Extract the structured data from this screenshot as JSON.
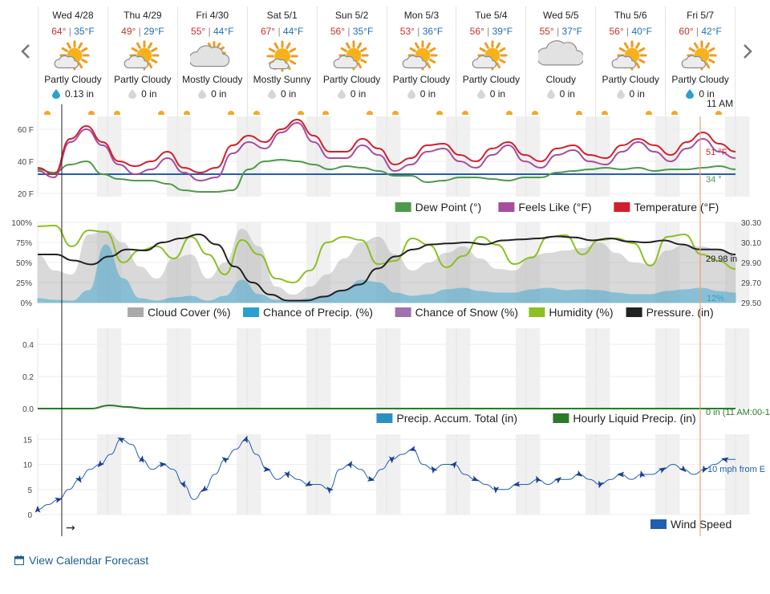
{
  "nav": {
    "prev_icon": "chevron-left-icon",
    "next_icon": "chevron-right-icon"
  },
  "days": [
    {
      "name": "Wed 4/28",
      "hi": "64°",
      "lo": "35°F",
      "cond": "Partly Cloudy",
      "icon": "partly-cloudy-icon",
      "precip": "0.13 in",
      "precip_icon": "rain-drop-icon"
    },
    {
      "name": "Thu 4/29",
      "hi": "49°",
      "lo": "29°F",
      "cond": "Partly Cloudy",
      "icon": "partly-cloudy-icon",
      "precip": "0 in",
      "precip_icon": "no-precip-icon"
    },
    {
      "name": "Fri 4/30",
      "hi": "55°",
      "lo": "44°F",
      "cond": "Mostly Cloudy",
      "icon": "mostly-cloudy-icon",
      "precip": "0 in",
      "precip_icon": "no-precip-icon"
    },
    {
      "name": "Sat 5/1",
      "hi": "67°",
      "lo": "44°F",
      "cond": "Mostly Sunny",
      "icon": "mostly-sunny-icon",
      "precip": "0 in",
      "precip_icon": "no-precip-icon"
    },
    {
      "name": "Sun 5/2",
      "hi": "56°",
      "lo": "35°F",
      "cond": "Partly Cloudy",
      "icon": "partly-cloudy-icon",
      "precip": "0 in",
      "precip_icon": "no-precip-icon"
    },
    {
      "name": "Mon 5/3",
      "hi": "53°",
      "lo": "36°F",
      "cond": "Partly Cloudy",
      "icon": "partly-cloudy-icon",
      "precip": "0 in",
      "precip_icon": "no-precip-icon"
    },
    {
      "name": "Tue 5/4",
      "hi": "56°",
      "lo": "39°F",
      "cond": "Partly Cloudy",
      "icon": "partly-cloudy-icon",
      "precip": "0 in",
      "precip_icon": "no-precip-icon"
    },
    {
      "name": "Wed 5/5",
      "hi": "55°",
      "lo": "37°F",
      "cond": "Cloudy",
      "icon": "cloudy-icon",
      "precip": "0 in",
      "precip_icon": "no-precip-icon"
    },
    {
      "name": "Thu 5/6",
      "hi": "56°",
      "lo": "40°F",
      "cond": "Partly Cloudy",
      "icon": "partly-cloudy-icon",
      "precip": "0 in",
      "precip_icon": "no-precip-icon"
    },
    {
      "name": "Fri 5/7",
      "hi": "60°",
      "lo": "42°F",
      "cond": "Partly Cloudy",
      "icon": "partly-cloudy-icon",
      "precip": "0 in",
      "precip_icon": "rain-drop-icon"
    }
  ],
  "current_time_label": "11 AM",
  "colors": {
    "temperature": "#d0202e",
    "feels_like": "#a64d9e",
    "dew_point": "#4e9a4a",
    "freezing": "#1f5fb0",
    "cloud_cover": "#aaaaaa",
    "precip_chance": "#2aa0d0",
    "snow_chance": "#a070b0",
    "humidity": "#8cc020",
    "pressure": "#222222",
    "precip_total": "#2a90c0",
    "liquid_precip": "#2a7a2a",
    "wind": "#1f5fb0",
    "now_line": "#f0a070",
    "night_band": "#eeeeee"
  },
  "chart_data": [
    {
      "type": "line",
      "title": "",
      "ylim": [
        20,
        65
      ],
      "y_ticks": [
        "60 F",
        "40 F",
        "20 F"
      ],
      "series": [
        {
          "name": "Dew Point (°)",
          "values": [
            35,
            33,
            38,
            40,
            32,
            29,
            28,
            28,
            26,
            22,
            21,
            21,
            22,
            35,
            40,
            41,
            40,
            38,
            35,
            37,
            36,
            34,
            31,
            31,
            27,
            28,
            30,
            30,
            29,
            28,
            30,
            30,
            33,
            34,
            35,
            36,
            35,
            36,
            34,
            35,
            35,
            36,
            37,
            35
          ]
        },
        {
          "name": "Feels Like (°F)",
          "values": [
            34,
            30,
            52,
            60,
            50,
            38,
            32,
            35,
            42,
            33,
            28,
            30,
            45,
            52,
            48,
            58,
            64,
            52,
            42,
            42,
            50,
            44,
            34,
            38,
            46,
            48,
            40,
            36,
            44,
            50,
            40,
            36,
            44,
            47,
            40,
            38,
            46,
            52,
            46,
            40,
            48,
            54,
            46,
            42
          ]
        },
        {
          "name": "Temperature (°F)",
          "values": [
            36,
            32,
            54,
            62,
            52,
            40,
            37,
            40,
            46,
            36,
            33,
            36,
            50,
            56,
            52,
            60,
            66,
            56,
            46,
            46,
            54,
            48,
            38,
            42,
            50,
            51,
            44,
            40,
            48,
            52,
            44,
            40,
            48,
            50,
            44,
            42,
            50,
            54,
            50,
            44,
            52,
            58,
            51,
            46
          ]
        }
      ],
      "annotations": [
        "51 °F",
        "34 °"
      ],
      "freezing_line": 32,
      "legend": [
        "Dew Point (°)",
        "Feels Like (°F)",
        "Temperature (°F)"
      ]
    },
    {
      "type": "area",
      "ylim": [
        0,
        100
      ],
      "y_ticks_left": [
        "100%",
        "75%",
        "50%",
        "25%",
        "0%"
      ],
      "y_ticks_right": [
        "30.30",
        "30.10",
        "29.90",
        "29.70",
        "29.50"
      ],
      "series": [
        {
          "name": "Cloud Cover (%)",
          "values": [
            60,
            40,
            35,
            85,
            90,
            75,
            45,
            30,
            55,
            60,
            30,
            50,
            92,
            70,
            20,
            10,
            20,
            35,
            55,
            75,
            82,
            60,
            40,
            50,
            62,
            70,
            55,
            42,
            40,
            58,
            62,
            65,
            68,
            75,
            62,
            50,
            48,
            65,
            72,
            70,
            65,
            60
          ]
        },
        {
          "name": "Chance of Precip. (%)",
          "values": [
            5,
            3,
            2,
            15,
            72,
            30,
            5,
            2,
            6,
            8,
            2,
            8,
            28,
            10,
            3,
            2,
            5,
            8,
            15,
            28,
            25,
            12,
            8,
            10,
            16,
            18,
            14,
            12,
            12,
            16,
            18,
            15,
            16,
            15,
            12,
            10,
            10,
            14,
            16,
            18,
            14,
            12
          ]
        },
        {
          "name": "Chance of Snow (%)",
          "values": []
        },
        {
          "name": "Humidity (%)",
          "values": [
            95,
            96,
            70,
            90,
            88,
            50,
            65,
            70,
            55,
            82,
            60,
            35,
            78,
            60,
            30,
            25,
            40,
            75,
            82,
            78,
            48,
            52,
            80,
            72,
            44,
            58,
            82,
            72,
            48,
            56,
            82,
            84,
            60,
            78,
            80,
            74,
            46,
            82,
            85,
            60,
            52,
            42
          ]
        },
        {
          "name": "Pressure. (in)",
          "values": [
            29.98,
            29.98,
            29.92,
            29.88,
            29.96,
            30.03,
            30.02,
            30.1,
            30.14,
            30.18,
            30.08,
            29.86,
            29.7,
            29.58,
            29.52,
            29.52,
            29.56,
            29.62,
            29.68,
            29.84,
            29.96,
            30.03,
            30.08,
            30.09,
            30.1,
            30.08,
            30.12,
            30.13,
            30.14,
            30.16,
            30.15,
            30.12,
            30.14,
            30.11,
            30.1,
            30.12,
            30.08,
            30.03,
            30.03,
            29.98
          ]
        }
      ],
      "annotations": [
        "29.98 in",
        "12%"
      ],
      "legend": [
        "Cloud Cover (%)",
        "Chance of Precip. (%)",
        "Chance of Snow (%)",
        "Humidity (%)",
        "Pressure. (in)"
      ]
    },
    {
      "type": "line",
      "ylim": [
        0,
        0.5
      ],
      "y_ticks": [
        "0.4",
        "0.2",
        "0.0"
      ],
      "series": [
        {
          "name": "Precip. Accum. Total (in)",
          "values": []
        },
        {
          "name": "Hourly Liquid Precip. (in)",
          "values": [
            0,
            0,
            0,
            0,
            0.02,
            0.01,
            0,
            0,
            0,
            0,
            0,
            0,
            0,
            0,
            0,
            0,
            0,
            0,
            0,
            0,
            0,
            0,
            0,
            0,
            0,
            0,
            0,
            0,
            0,
            0,
            0,
            0,
            0,
            0,
            0,
            0,
            0,
            0,
            0,
            0
          ]
        }
      ],
      "annotations": [
        "0 in (11 AM:00-1"
      ],
      "legend": [
        "Precip. Accum. Total (in)",
        "Hourly Liquid Precip. (in)"
      ]
    },
    {
      "type": "line",
      "ylim": [
        0,
        16
      ],
      "y_ticks": [
        "15",
        "10",
        "5",
        "0"
      ],
      "series": [
        {
          "name": "Wind Speed",
          "values": [
            1,
            2,
            3,
            5,
            7,
            9,
            10,
            12,
            15,
            14,
            11,
            9,
            10,
            9,
            6,
            3,
            5,
            8,
            11,
            13,
            15,
            12,
            9,
            7,
            8,
            7,
            6,
            6,
            5,
            9,
            10,
            9,
            7,
            9,
            11,
            12,
            13,
            10,
            9,
            10,
            10,
            8,
            7,
            6,
            5,
            5,
            6,
            6,
            7,
            6,
            7,
            7,
            8,
            7,
            6,
            7,
            8,
            7,
            8,
            8,
            9,
            10,
            9,
            8,
            9,
            10,
            11,
            11
          ]
        }
      ],
      "annotations": [
        "10 mph from E"
      ],
      "legend": [
        "Wind Speed"
      ]
    }
  ],
  "link": {
    "label": "View Calendar Forecast",
    "icon": "calendar-icon"
  }
}
